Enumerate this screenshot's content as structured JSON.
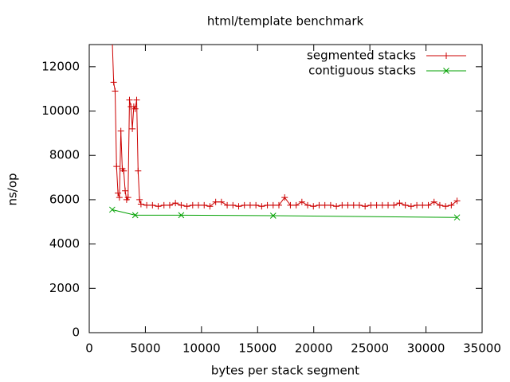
{
  "chart_data": {
    "type": "line",
    "title": "html/template benchmark",
    "x_label": "bytes per stack segment",
    "y_label": "ns/op",
    "xlim": [
      0,
      35000
    ],
    "ylim": [
      0,
      13000
    ],
    "xticks": [
      0,
      5000,
      10000,
      15000,
      20000,
      25000,
      30000,
      35000
    ],
    "yticks": [
      0,
      2000,
      4000,
      6000,
      8000,
      10000,
      12000
    ],
    "legend": "top-right",
    "series": [
      {
        "name": "segmented stacks",
        "color": "#cc0000",
        "marker": "plus",
        "x": [
          2048,
          2176,
          2304,
          2432,
          2560,
          2688,
          2816,
          2944,
          3072,
          3200,
          3328,
          3456,
          3584,
          3712,
          3840,
          3968,
          4096,
          4224,
          4352,
          4480,
          4608,
          5120,
          5632,
          6144,
          6656,
          7168,
          7680,
          8192,
          8704,
          9216,
          9728,
          10240,
          10752,
          11264,
          11776,
          12288,
          12800,
          13312,
          13824,
          14336,
          14848,
          15360,
          15872,
          16384,
          16896,
          17408,
          17920,
          18432,
          18944,
          19456,
          19968,
          20480,
          20992,
          21504,
          22016,
          22528,
          23040,
          23552,
          24064,
          24576,
          25088,
          25600,
          26112,
          26624,
          27136,
          27648,
          28160,
          28672,
          29184,
          29696,
          30208,
          30720,
          31232,
          31744,
          32256,
          32768
        ],
        "values": [
          13200,
          11300,
          10900,
          7500,
          6300,
          6100,
          9100,
          7400,
          7300,
          6400,
          6000,
          6100,
          10500,
          10200,
          9200,
          10200,
          10100,
          10500,
          7300,
          6000,
          5800,
          5750,
          5750,
          5700,
          5750,
          5750,
          5850,
          5750,
          5700,
          5750,
          5750,
          5750,
          5700,
          5900,
          5900,
          5750,
          5750,
          5700,
          5750,
          5750,
          5750,
          5700,
          5750,
          5750,
          5750,
          6100,
          5750,
          5750,
          5900,
          5750,
          5700,
          5750,
          5750,
          5750,
          5700,
          5750,
          5750,
          5750,
          5750,
          5700,
          5750,
          5750,
          5750,
          5750,
          5750,
          5850,
          5750,
          5700,
          5750,
          5750,
          5750,
          5900,
          5750,
          5700,
          5750,
          5950
        ]
      },
      {
        "name": "contiguous stacks",
        "color": "#00a000",
        "marker": "cross",
        "x": [
          2048,
          4096,
          8192,
          16384,
          32768
        ],
        "values": [
          5550,
          5300,
          5300,
          5280,
          5200
        ]
      }
    ]
  }
}
